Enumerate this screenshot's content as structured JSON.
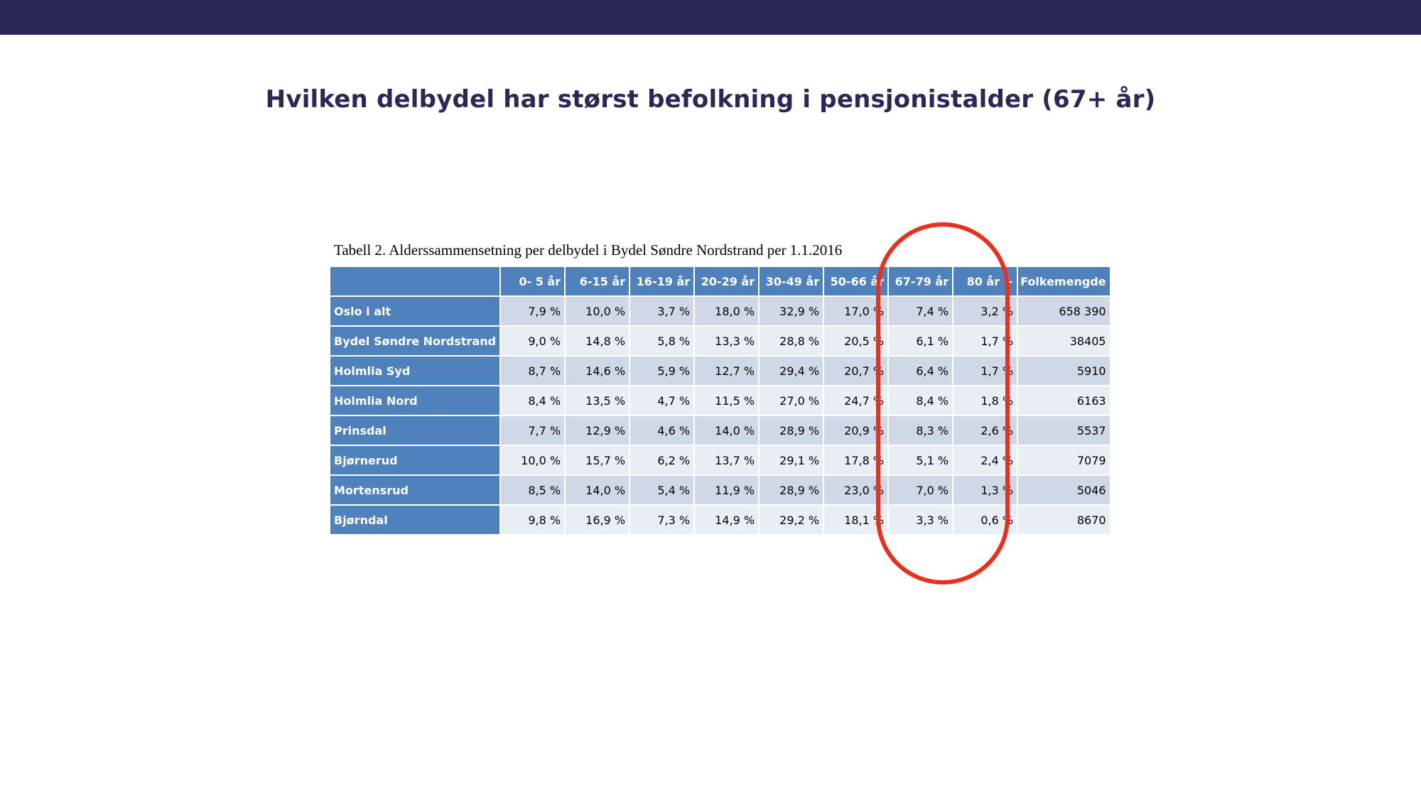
{
  "slide": {
    "title": "Hvilken delbydel har størst befolkning i pensjonistalder (67+ år)"
  },
  "table": {
    "caption": "Tabell 2. Alderssammensetning per delbydel i Bydel Søndre Nordstrand per 1.1.2016",
    "headers": [
      "",
      "0- 5 år",
      "6-15 år",
      "16-19 år",
      "20-29 år",
      "30-49 år",
      "50-66 år",
      "67-79 år",
      "80 år +",
      "Folkemengde"
    ],
    "rows": [
      {
        "name": "Oslo i alt",
        "values": [
          "7,9 %",
          "10,0 %",
          "3,7 %",
          "18,0 %",
          "32,9 %",
          "17,0 %",
          "7,4 %",
          "3,2 %",
          "658 390"
        ]
      },
      {
        "name": "Bydel Søndre Nordstrand",
        "values": [
          "9,0 %",
          "14,8 %",
          "5,8 %",
          "13,3 %",
          "28,8 %",
          "20,5 %",
          "6,1 %",
          "1,7 %",
          "38405"
        ]
      },
      {
        "name": "Holmlia Syd",
        "values": [
          "8,7 %",
          "14,6 %",
          "5,9 %",
          "12,7 %",
          "29,4 %",
          "20,7 %",
          "6,4 %",
          "1,7 %",
          "5910"
        ]
      },
      {
        "name": "Holmlia Nord",
        "values": [
          "8,4 %",
          "13,5 %",
          "4,7 %",
          "11,5 %",
          "27,0 %",
          "24,7 %",
          "8,4 %",
          "1,8 %",
          "6163"
        ]
      },
      {
        "name": "Prinsdal",
        "values": [
          "7,7 %",
          "12,9 %",
          "4,6 %",
          "14,0 %",
          "28,9 %",
          "20,9 %",
          "8,3 %",
          "2,6 %",
          "5537"
        ]
      },
      {
        "name": "Bjørnerud",
        "values": [
          "10,0 %",
          "15,7 %",
          "6,2 %",
          "13,7 %",
          "29,1 %",
          "17,8 %",
          "5,1 %",
          "2,4 %",
          "7079"
        ]
      },
      {
        "name": "Mortensrud",
        "values": [
          "8,5 %",
          "14,0 %",
          "5,4 %",
          "11,9 %",
          "28,9 %",
          "23,0 %",
          "7,0 %",
          "1,3 %",
          "5046"
        ]
      },
      {
        "name": "Bjørndal",
        "values": [
          "9,8 %",
          "16,9 %",
          "7,3 %",
          "14,9 %",
          "29,2 %",
          "18,1 %",
          "3,3 %",
          "0,6 %",
          "8670"
        ]
      }
    ],
    "highlighted_columns": [
      "67-79 år",
      "80 år +"
    ]
  },
  "colors": {
    "top_bar": "#2a2859",
    "title": "#2a2859",
    "header_blue": "#4f81bd",
    "row_odd": "#d0d8e8",
    "row_even": "#e9edf4",
    "highlight": "#e8301c"
  }
}
